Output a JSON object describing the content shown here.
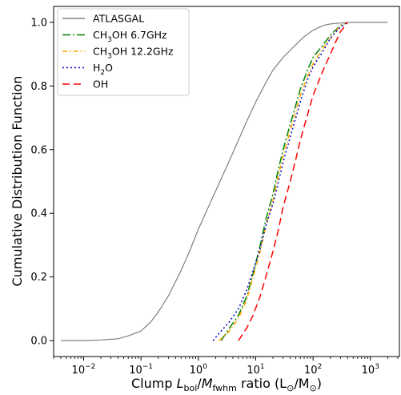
{
  "chart_data": {
    "type": "line",
    "x_scale": "log",
    "xlim": [
      0.003,
      3200
    ],
    "ylim": [
      -0.05,
      1.05
    ],
    "xlabel_parts": [
      "Clump ",
      "L",
      "bol",
      "/",
      "M",
      "fwhm",
      " ratio (L",
      "⊙",
      "/M",
      "⊙",
      ")"
    ],
    "ylabel": "Cumulative Distribution Function",
    "x_ticks": [
      {
        "value": 0.01,
        "base": "10",
        "exp": "−2"
      },
      {
        "value": 0.1,
        "base": "10",
        "exp": "−1"
      },
      {
        "value": 1,
        "base": "10",
        "exp": "0"
      },
      {
        "value": 10,
        "base": "10",
        "exp": "1"
      },
      {
        "value": 100,
        "base": "10",
        "exp": "2"
      },
      {
        "value": 1000,
        "base": "10",
        "exp": "3"
      }
    ],
    "y_ticks": [
      "0.0",
      "0.2",
      "0.4",
      "0.6",
      "0.8",
      "1.0"
    ],
    "legend_position": "top-left",
    "series": [
      {
        "name": "ATLASGAL",
        "legend_parts": [
          "ATLASGAL"
        ],
        "color": "#808080",
        "dash": "",
        "x": [
          0.004,
          0.01,
          0.02,
          0.04,
          0.06,
          0.1,
          0.15,
          0.2,
          0.3,
          0.5,
          0.7,
          1,
          1.5,
          2,
          3,
          4,
          5,
          7,
          10,
          15,
          20,
          30,
          50,
          70,
          100,
          150,
          200,
          300,
          500,
          1000,
          2000
        ],
        "y": [
          0.0,
          0.0,
          0.002,
          0.006,
          0.015,
          0.03,
          0.06,
          0.09,
          0.14,
          0.22,
          0.28,
          0.35,
          0.42,
          0.47,
          0.54,
          0.59,
          0.63,
          0.69,
          0.75,
          0.81,
          0.85,
          0.89,
          0.93,
          0.955,
          0.975,
          0.99,
          0.995,
          0.998,
          1.0,
          1.0,
          1.0
        ]
      },
      {
        "name": "CH3OH 6.7GHz",
        "legend_parts": [
          "CH",
          "3",
          "OH 6.7GHz"
        ],
        "color": "#008000",
        "dash": "10,3,2,3",
        "x": [
          2.5,
          3.5,
          5,
          7,
          9,
          12,
          15,
          20,
          25,
          30,
          40,
          50,
          60,
          80,
          100,
          150,
          200,
          300,
          400
        ],
        "y": [
          0.0,
          0.04,
          0.08,
          0.14,
          0.21,
          0.3,
          0.38,
          0.46,
          0.54,
          0.6,
          0.68,
          0.74,
          0.79,
          0.85,
          0.89,
          0.93,
          0.96,
          0.99,
          1.0
        ]
      },
      {
        "name": "CH3OH 12.2GHz",
        "legend_parts": [
          "CH",
          "3",
          "OH 12.2GHz"
        ],
        "color": "#FFA500",
        "dash": "6,3,1.5,3",
        "x": [
          2.3,
          3.5,
          5,
          7,
          9,
          12,
          15,
          20,
          25,
          30,
          40,
          50,
          60,
          80,
          100,
          150,
          200,
          300,
          400
        ],
        "y": [
          0.0,
          0.03,
          0.07,
          0.13,
          0.2,
          0.28,
          0.36,
          0.44,
          0.52,
          0.58,
          0.66,
          0.72,
          0.77,
          0.83,
          0.87,
          0.92,
          0.95,
          0.99,
          1.0
        ]
      },
      {
        "name": "H2O",
        "legend_parts": [
          "H",
          "2",
          "O"
        ],
        "color": "#0000CD",
        "dash": "2,3",
        "x": [
          1.8,
          2.5,
          3.5,
          5,
          7,
          9,
          12,
          15,
          20,
          25,
          30,
          40,
          50,
          60,
          80,
          100,
          150,
          200,
          300,
          400
        ],
        "y": [
          0.0,
          0.03,
          0.06,
          0.1,
          0.16,
          0.22,
          0.29,
          0.36,
          0.43,
          0.5,
          0.56,
          0.64,
          0.7,
          0.75,
          0.82,
          0.86,
          0.91,
          0.95,
          0.985,
          1.0
        ]
      },
      {
        "name": "OH",
        "legend_parts": [
          "OH"
        ],
        "color": "#FF0000",
        "dash": "9,5",
        "x": [
          5,
          7,
          9,
          12,
          15,
          20,
          25,
          30,
          40,
          50,
          60,
          80,
          100,
          150,
          200,
          250,
          300,
          400
        ],
        "y": [
          0.0,
          0.04,
          0.08,
          0.14,
          0.2,
          0.28,
          0.35,
          0.42,
          0.5,
          0.57,
          0.63,
          0.71,
          0.77,
          0.85,
          0.9,
          0.94,
          0.97,
          1.0
        ]
      }
    ]
  }
}
